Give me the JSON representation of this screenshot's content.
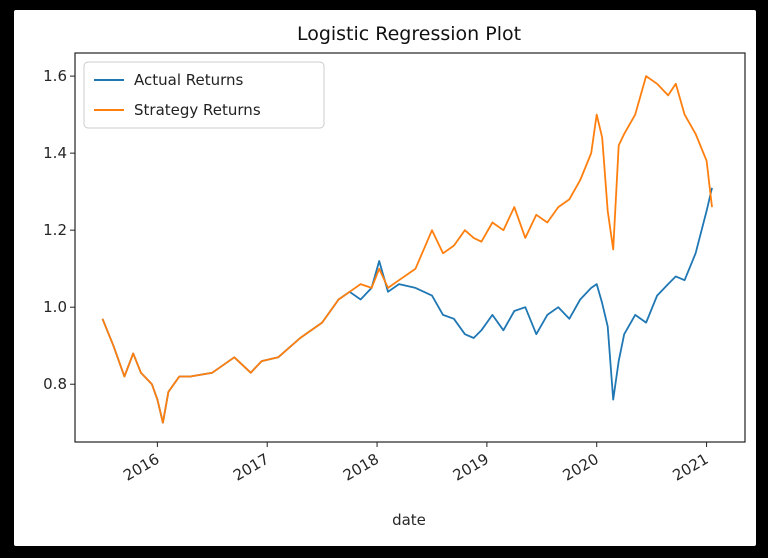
{
  "chart_data": {
    "type": "line",
    "title": "Logistic Regression Plot",
    "xlabel": "date",
    "ylabel": "",
    "xlim": [
      2015.25,
      2021.35
    ],
    "ylim": [
      0.65,
      1.66
    ],
    "x_ticks": [
      2016,
      2017,
      2018,
      2019,
      2020,
      2021
    ],
    "x_tick_labels": [
      "2016",
      "2017",
      "2018",
      "2019",
      "2020",
      "2021"
    ],
    "y_ticks": [
      0.8,
      1.0,
      1.2,
      1.4,
      1.6
    ],
    "y_tick_labels": [
      "0.8",
      "1.0",
      "1.2",
      "1.4",
      "1.6"
    ],
    "grid": false,
    "legend": "top-left",
    "series": [
      {
        "name": "Actual Returns",
        "color": "#1f77b4",
        "x": [
          2015.5,
          2015.6,
          2015.7,
          2015.78,
          2015.85,
          2015.95,
          2016.0,
          2016.05,
          2016.1,
          2016.2,
          2016.3,
          2016.5,
          2016.7,
          2016.85,
          2016.95,
          2017.1,
          2017.3,
          2017.5,
          2017.65,
          2017.75,
          2017.85,
          2017.95,
          2018.02,
          2018.1,
          2018.2,
          2018.35,
          2018.5,
          2018.6,
          2018.7,
          2018.8,
          2018.88,
          2018.95,
          2019.05,
          2019.15,
          2019.25,
          2019.35,
          2019.45,
          2019.55,
          2019.65,
          2019.75,
          2019.85,
          2019.95,
          2020.0,
          2020.05,
          2020.1,
          2020.15,
          2020.2,
          2020.25,
          2020.35,
          2020.45,
          2020.55,
          2020.65,
          2020.72,
          2020.8,
          2020.9,
          2021.0,
          2021.05
        ],
        "values": [
          0.97,
          0.9,
          0.82,
          0.88,
          0.83,
          0.8,
          0.76,
          0.7,
          0.78,
          0.82,
          0.82,
          0.83,
          0.87,
          0.83,
          0.86,
          0.87,
          0.92,
          0.96,
          1.02,
          1.04,
          1.02,
          1.05,
          1.12,
          1.04,
          1.06,
          1.05,
          1.03,
          0.98,
          0.97,
          0.93,
          0.92,
          0.94,
          0.98,
          0.94,
          0.99,
          1.0,
          0.93,
          0.98,
          1.0,
          0.97,
          1.02,
          1.05,
          1.06,
          1.01,
          0.95,
          0.76,
          0.86,
          0.93,
          0.98,
          0.96,
          1.03,
          1.06,
          1.08,
          1.07,
          1.14,
          1.25,
          1.31
        ]
      },
      {
        "name": "Strategy Returns",
        "color": "#ff7f0e",
        "x": [
          2015.5,
          2015.6,
          2015.7,
          2015.78,
          2015.85,
          2015.95,
          2016.0,
          2016.05,
          2016.1,
          2016.2,
          2016.3,
          2016.5,
          2016.7,
          2016.85,
          2016.95,
          2017.1,
          2017.3,
          2017.5,
          2017.65,
          2017.75,
          2017.85,
          2017.95,
          2018.02,
          2018.1,
          2018.2,
          2018.35,
          2018.5,
          2018.6,
          2018.7,
          2018.8,
          2018.88,
          2018.95,
          2019.05,
          2019.15,
          2019.25,
          2019.35,
          2019.45,
          2019.55,
          2019.65,
          2019.75,
          2019.85,
          2019.95,
          2020.0,
          2020.05,
          2020.1,
          2020.15,
          2020.2,
          2020.25,
          2020.35,
          2020.45,
          2020.55,
          2020.65,
          2020.72,
          2020.8,
          2020.9,
          2021.0,
          2021.05
        ],
        "values": [
          0.97,
          0.9,
          0.82,
          0.88,
          0.83,
          0.8,
          0.76,
          0.7,
          0.78,
          0.82,
          0.82,
          0.83,
          0.87,
          0.83,
          0.86,
          0.87,
          0.92,
          0.96,
          1.02,
          1.04,
          1.06,
          1.05,
          1.1,
          1.05,
          1.07,
          1.1,
          1.2,
          1.14,
          1.16,
          1.2,
          1.18,
          1.17,
          1.22,
          1.2,
          1.26,
          1.18,
          1.24,
          1.22,
          1.26,
          1.28,
          1.33,
          1.4,
          1.5,
          1.44,
          1.25,
          1.15,
          1.42,
          1.45,
          1.5,
          1.6,
          1.58,
          1.55,
          1.58,
          1.5,
          1.45,
          1.38,
          1.26
        ]
      }
    ]
  }
}
